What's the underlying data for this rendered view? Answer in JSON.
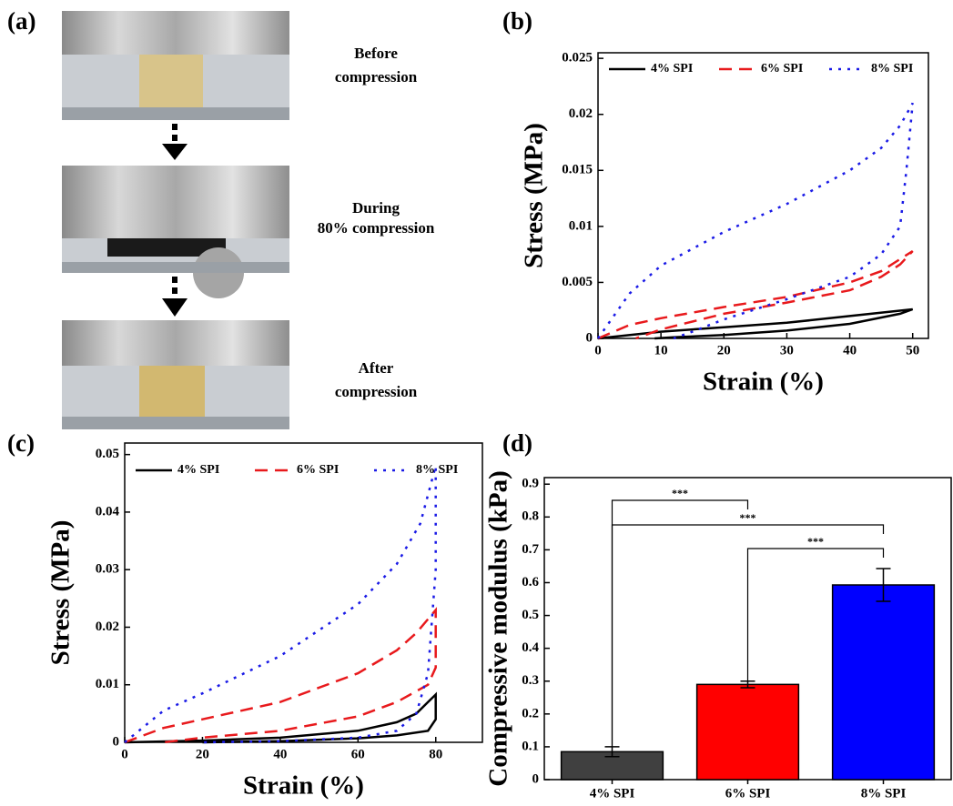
{
  "photo_panel": {
    "label": "(a)",
    "captions": [
      [
        "Before",
        "compression"
      ],
      [
        "During",
        "80% compression"
      ],
      [
        "After",
        "compression"
      ]
    ]
  },
  "chart_data": [
    {
      "type": "line",
      "label": "(b)",
      "x_label": "Strain (%)",
      "y_label": "Stress (MPa)",
      "xlim": [
        0,
        52.5
      ],
      "xticks": [
        0,
        10,
        20,
        30,
        40,
        50
      ],
      "ylim": [
        0,
        0.0255
      ],
      "yticks": [
        0,
        0.005,
        0.01,
        0.015,
        0.02,
        0.025
      ],
      "grid": false,
      "series": [
        {
          "name": "4% SPI",
          "color": "#000000",
          "style": "solid",
          "x": [
            0,
            10,
            20,
            30,
            40,
            50,
            48,
            40,
            30,
            20,
            12,
            9
          ],
          "values": [
            0,
            0.0006,
            0.001,
            0.0014,
            0.002,
            0.0026,
            0.0022,
            0.0013,
            0.0007,
            0.0003,
            0.0001,
            0
          ]
        },
        {
          "name": "6% SPI",
          "color": "#e8191c",
          "style": "dashed",
          "x": [
            0,
            5,
            10,
            20,
            30,
            40,
            45,
            50,
            48,
            45,
            40,
            30,
            20,
            10,
            6
          ],
          "values": [
            0,
            0.0012,
            0.0018,
            0.0028,
            0.0037,
            0.005,
            0.006,
            0.0078,
            0.0066,
            0.0055,
            0.0043,
            0.0032,
            0.0022,
            0.0008,
            0
          ]
        },
        {
          "name": "8% SPI",
          "color": "#1a1ae6",
          "style": "dotted",
          "x": [
            0,
            5,
            10,
            20,
            30,
            40,
            45,
            48,
            50,
            49,
            48,
            45,
            40,
            30,
            20,
            15,
            12
          ],
          "values": [
            0,
            0.004,
            0.0065,
            0.0095,
            0.012,
            0.015,
            0.017,
            0.019,
            0.021,
            0.015,
            0.01,
            0.0075,
            0.0055,
            0.0035,
            0.0017,
            0.0006,
            0
          ]
        }
      ]
    },
    {
      "type": "line",
      "label": "(c)",
      "x_label": "Strain (%)",
      "y_label": "Stress (MPa)",
      "xlim": [
        0,
        92
      ],
      "xticks": [
        0,
        20,
        40,
        60,
        80
      ],
      "ylim": [
        0,
        0.052
      ],
      "yticks": [
        0,
        0.01,
        0.02,
        0.03,
        0.04,
        0.05
      ],
      "grid": false,
      "series": [
        {
          "name": "4% SPI",
          "color": "#000000",
          "style": "solid",
          "x": [
            0,
            20,
            40,
            60,
            70,
            75,
            78,
            80,
            80,
            78,
            70,
            60,
            40,
            20
          ],
          "values": [
            0,
            0.0003,
            0.0008,
            0.002,
            0.0035,
            0.005,
            0.007,
            0.0083,
            0.004,
            0.002,
            0.0012,
            0.0007,
            0.0002,
            0
          ]
        },
        {
          "name": "6% SPI",
          "color": "#e8191c",
          "style": "dashed",
          "x": [
            0,
            10,
            20,
            40,
            60,
            70,
            75,
            80,
            80,
            78,
            70,
            60,
            40,
            20,
            10
          ],
          "values": [
            0,
            0.0025,
            0.004,
            0.007,
            0.012,
            0.016,
            0.019,
            0.023,
            0.013,
            0.01,
            0.007,
            0.0045,
            0.002,
            0.0008,
            0
          ]
        },
        {
          "name": "8% SPI",
          "color": "#1a1ae6",
          "style": "dotted",
          "x": [
            0,
            10,
            20,
            40,
            60,
            70,
            76,
            80,
            80,
            78,
            75,
            70,
            60,
            40,
            20
          ],
          "values": [
            0,
            0.0055,
            0.0085,
            0.015,
            0.024,
            0.031,
            0.038,
            0.048,
            0.03,
            0.012,
            0.005,
            0.002,
            0.0008,
            0.0002,
            0
          ]
        }
      ]
    },
    {
      "type": "bar",
      "label": "(d)",
      "y_label": "Compressive modulus (kPa)",
      "categories": [
        "4% SPI",
        "6% SPI",
        "8% SPI"
      ],
      "values": [
        0.085,
        0.29,
        0.593
      ],
      "errors": [
        0.015,
        0.01,
        0.05
      ],
      "colors": [
        "#404040",
        "#ff0000",
        "#0000ff"
      ],
      "ylim": [
        0,
        0.92
      ],
      "yticks": [
        0,
        0.1,
        0.2,
        0.3,
        0.4,
        0.5,
        0.6,
        0.7,
        0.8,
        0.9
      ],
      "grid": false,
      "significance": [
        {
          "from": 0,
          "to": 1,
          "label": "***"
        },
        {
          "from": 0,
          "to": 2,
          "label": "***"
        },
        {
          "from": 1,
          "to": 2,
          "label": "***"
        }
      ]
    }
  ]
}
